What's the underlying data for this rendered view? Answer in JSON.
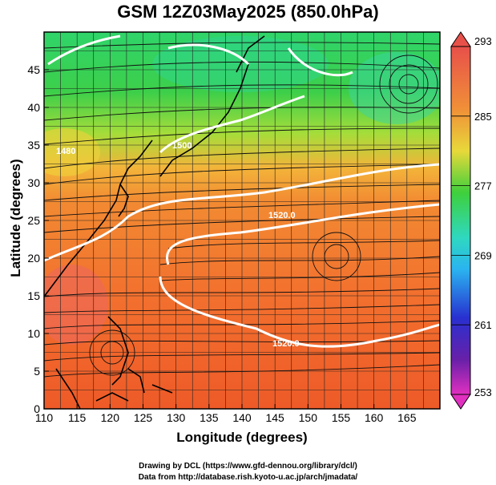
{
  "title": "GSM 12Z03May2025 (850.0hPa)",
  "x_axis": {
    "label": "Longitude (degrees)",
    "ticks": [
      "110",
      "115",
      "120",
      "125",
      "130",
      "135",
      "140",
      "145",
      "150",
      "155",
      "160",
      "165"
    ]
  },
  "y_axis": {
    "label": "Latitude (degrees)",
    "ticks": [
      "0",
      "5",
      "10",
      "15",
      "20",
      "25",
      "30",
      "35",
      "40",
      "45"
    ]
  },
  "colorbar": {
    "labels": [
      "293",
      "285",
      "277",
      "269",
      "261",
      "253"
    ],
    "colors": [
      "#e8604a",
      "#f08a3a",
      "#f3c23a",
      "#d2e83a",
      "#4fd34a",
      "#33d6a0",
      "#2ad0e0",
      "#2a7fe8",
      "#2b3fd8",
      "#4a20b0",
      "#8a20a0",
      "#d030c8"
    ]
  },
  "contours": [
    {
      "label": "1520.0"
    },
    {
      "label": "1520.0"
    },
    {
      "label": "1500"
    },
    {
      "label": "1480"
    }
  ],
  "credits": {
    "line1": "Drawing by DCL (https://www.gfd-dennou.org/library/dcl/)",
    "line2": "Data from http://database.rish.kyoto-u.ac.jp/arch/jmadata/"
  }
}
